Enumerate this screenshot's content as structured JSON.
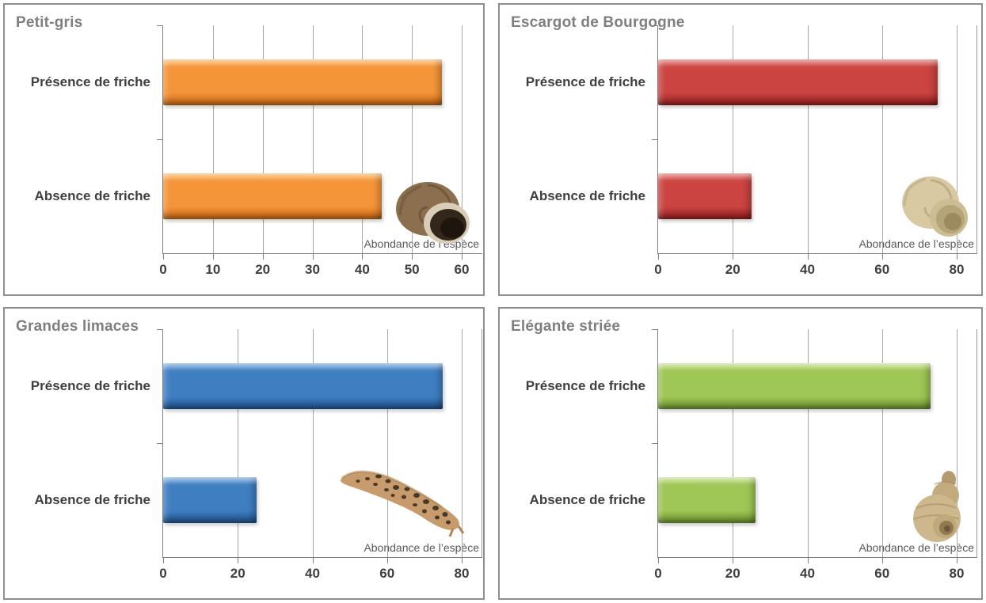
{
  "chart_data": [
    {
      "type": "bar",
      "orientation": "horizontal",
      "title": "Petit-gris",
      "categories": [
        "Présence de friche",
        "Absence de friche"
      ],
      "values": [
        56,
        44
      ],
      "xlabel": "Abondance de l’espèce",
      "xlim": [
        0,
        60
      ],
      "xticks": [
        0,
        10,
        20,
        30,
        40,
        50,
        60
      ],
      "grid": true,
      "legend": false,
      "colors": {
        "light": "#FBB45C",
        "mid": "#F49539",
        "dark": "#C96A14"
      },
      "image": "petit-gris-snail"
    },
    {
      "type": "bar",
      "orientation": "horizontal",
      "title": "Escargot de Bourgogne",
      "categories": [
        "Présence de friche",
        "Absence de friche"
      ],
      "values": [
        75,
        25
      ],
      "xlabel": "Abondance de l’espèce",
      "xlim": [
        0,
        80
      ],
      "xticks": [
        0,
        20,
        40,
        60,
        80
      ],
      "grid": true,
      "legend": false,
      "colors": {
        "light": "#E26B66",
        "mid": "#CB4441",
        "dark": "#96201E"
      },
      "image": "bourgogne-snail"
    },
    {
      "type": "bar",
      "orientation": "horizontal",
      "title": "Grandes limaces",
      "categories": [
        "Présence de friche",
        "Absence de friche"
      ],
      "values": [
        75,
        25
      ],
      "xlabel": "Abondance de l’espèce",
      "xlim": [
        0,
        80
      ],
      "xticks": [
        0,
        20,
        40,
        60,
        80
      ],
      "grid": true,
      "legend": false,
      "colors": {
        "light": "#6FA4D8",
        "mid": "#3F7FC1",
        "dark": "#1F5694"
      },
      "image": "leopard-slug"
    },
    {
      "type": "bar",
      "orientation": "horizontal",
      "title": "Elégante striée",
      "categories": [
        "Présence de friche",
        "Absence de friche"
      ],
      "values": [
        73,
        26
      ],
      "xlabel": "Abondance de l’espèce",
      "xlim": [
        0,
        80
      ],
      "xticks": [
        0,
        20,
        40,
        60,
        80
      ],
      "grid": true,
      "legend": false,
      "colors": {
        "light": "#C3DC83",
        "mid": "#9EC755",
        "dark": "#6E9430"
      },
      "image": "elegante-snail"
    }
  ]
}
